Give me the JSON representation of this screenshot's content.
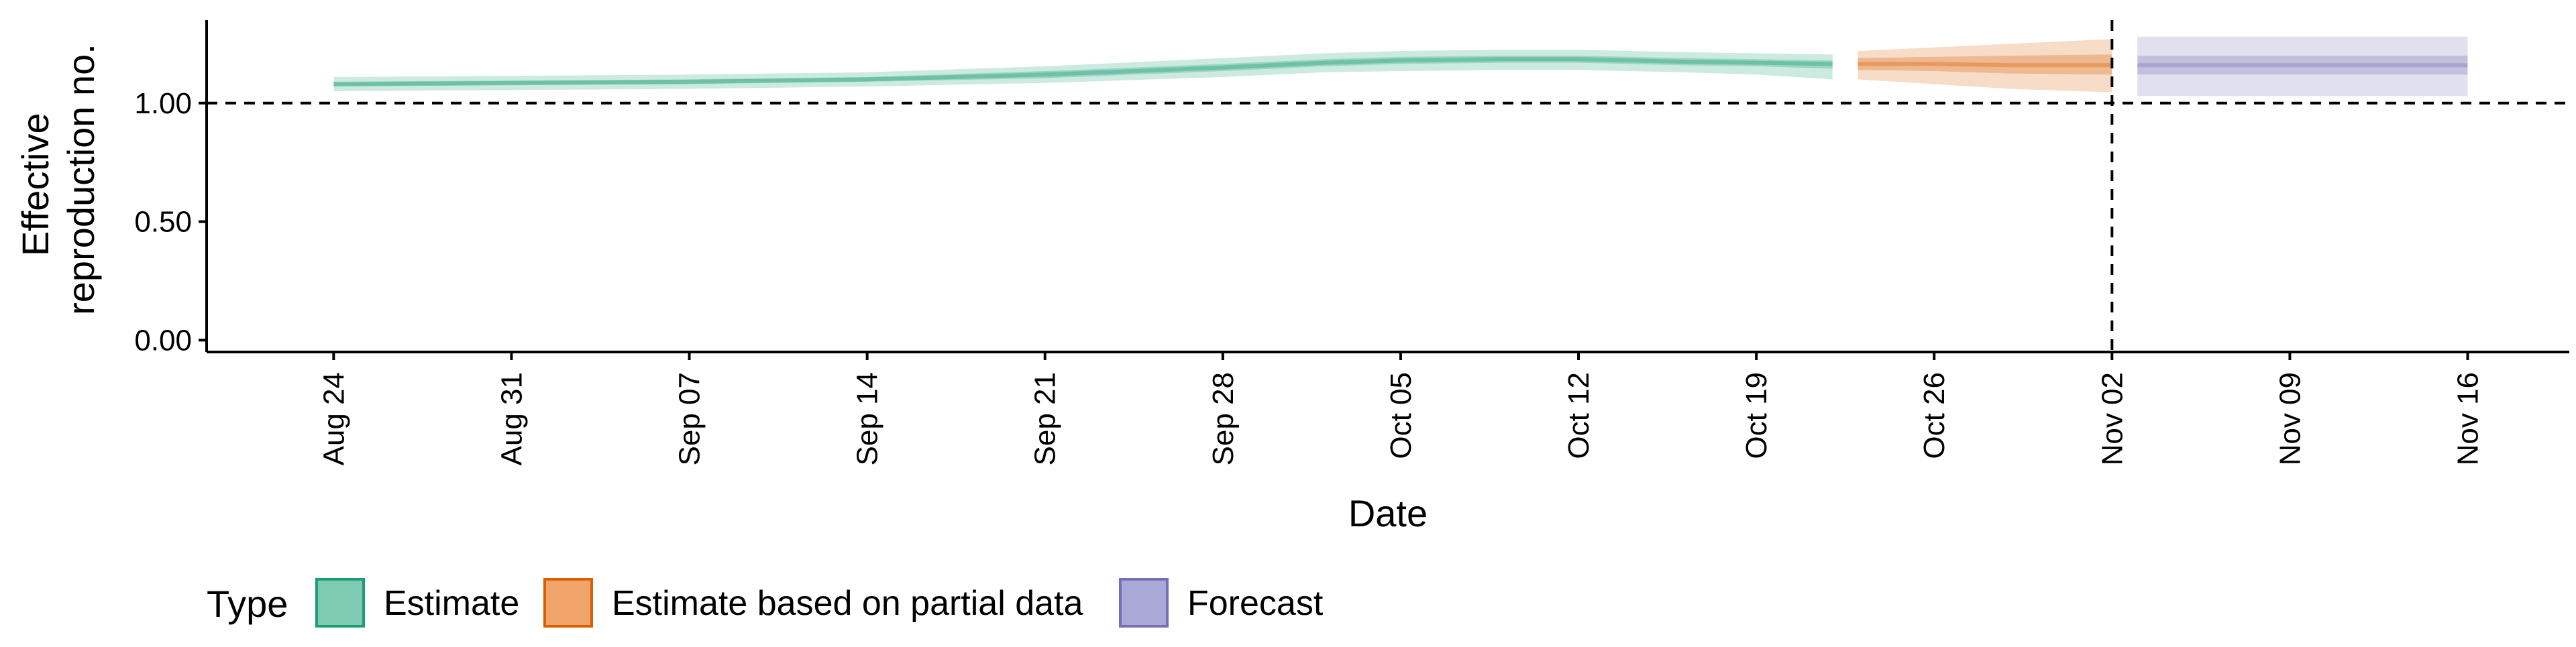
{
  "chart_data": {
    "type": "area",
    "title": "",
    "xlabel": "Date",
    "ylabel_lines": [
      "Effective",
      "reproduction no."
    ],
    "x_ticks": [
      "Aug 24",
      "Aug 31",
      "Sep 07",
      "Sep 14",
      "Sep 21",
      "Sep 28",
      "Oct 05",
      "Oct 12",
      "Oct 19",
      "Oct 26",
      "Nov 02",
      "Nov 09",
      "Nov 16"
    ],
    "x_tick_dates": [
      "2020-08-24",
      "2020-08-31",
      "2020-09-07",
      "2020-09-14",
      "2020-09-21",
      "2020-09-28",
      "2020-10-05",
      "2020-10-12",
      "2020-10-19",
      "2020-10-26",
      "2020-11-02",
      "2020-11-09",
      "2020-11-16"
    ],
    "xlim": [
      "2020-08-19",
      "2020-11-20"
    ],
    "y_ticks": [
      "0.00",
      "0.50",
      "1.00"
    ],
    "y_tick_values": [
      0.0,
      0.5,
      1.0
    ],
    "ylim": [
      -0.05,
      1.35
    ],
    "hline": {
      "y": 1.0,
      "style": "dashed"
    },
    "vline": {
      "x": "2020-11-02",
      "style": "dashed"
    },
    "grid": false,
    "legend": {
      "title": "Type",
      "position": "bottom-left",
      "items": [
        {
          "label": "Estimate",
          "fill": "#7fcbb1",
          "stroke": "#1b9e77"
        },
        {
          "label": "Estimate based on partial data",
          "fill": "#f0a46a",
          "stroke": "#d95f02"
        },
        {
          "label": "Forecast",
          "fill": "#aaa8d6",
          "stroke": "#7570b3"
        }
      ]
    },
    "series": [
      {
        "name": "Estimate",
        "color": "#1b9e77",
        "x": [
          "2020-08-24",
          "2020-08-31",
          "2020-09-07",
          "2020-09-14",
          "2020-09-21",
          "2020-09-28",
          "2020-10-02",
          "2020-10-05",
          "2020-10-09",
          "2020-10-12",
          "2020-10-16",
          "2020-10-19",
          "2020-10-22"
        ],
        "median": [
          1.08,
          1.085,
          1.09,
          1.1,
          1.12,
          1.15,
          1.17,
          1.18,
          1.185,
          1.185,
          1.175,
          1.17,
          1.165
        ],
        "lower_90": [
          1.05,
          1.055,
          1.06,
          1.07,
          1.085,
          1.11,
          1.13,
          1.135,
          1.14,
          1.14,
          1.13,
          1.12,
          1.1
        ],
        "upper_90": [
          1.11,
          1.115,
          1.12,
          1.13,
          1.155,
          1.19,
          1.21,
          1.22,
          1.225,
          1.225,
          1.215,
          1.21,
          1.205
        ],
        "lower_50": [
          1.07,
          1.075,
          1.08,
          1.09,
          1.105,
          1.135,
          1.155,
          1.165,
          1.17,
          1.17,
          1.16,
          1.155,
          1.145
        ],
        "upper_50": [
          1.09,
          1.095,
          1.1,
          1.11,
          1.135,
          1.165,
          1.185,
          1.195,
          1.2,
          1.2,
          1.19,
          1.185,
          1.18
        ]
      },
      {
        "name": "Estimate based on partial data",
        "color": "#d95f02",
        "x": [
          "2020-10-23",
          "2020-10-26",
          "2020-10-29",
          "2020-11-02"
        ],
        "median": [
          1.165,
          1.165,
          1.16,
          1.16
        ],
        "lower_90": [
          1.1,
          1.08,
          1.06,
          1.045
        ],
        "upper_90": [
          1.22,
          1.235,
          1.25,
          1.27
        ],
        "lower_50": [
          1.14,
          1.135,
          1.125,
          1.12
        ],
        "upper_50": [
          1.19,
          1.195,
          1.2,
          1.205
        ]
      },
      {
        "name": "Forecast",
        "color": "#7570b3",
        "x": [
          "2020-11-03",
          "2020-11-16"
        ],
        "median": [
          1.16,
          1.16
        ],
        "lower_90": [
          1.03,
          1.03
        ],
        "upper_90": [
          1.28,
          1.28
        ],
        "lower_50": [
          1.12,
          1.12
        ],
        "upper_50": [
          1.2,
          1.2
        ]
      }
    ]
  }
}
